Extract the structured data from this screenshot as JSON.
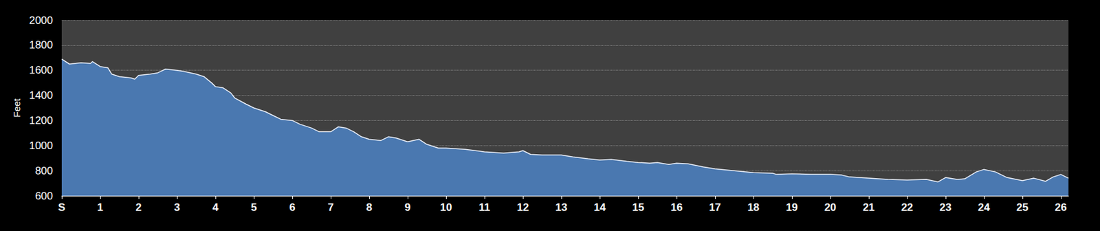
{
  "chart_data": {
    "type": "area",
    "y_label": "Feet",
    "color": "#4a78b0",
    "grid": true,
    "x": [
      0,
      0.2,
      0.5,
      0.75,
      0.8,
      1.0,
      1.2,
      1.3,
      1.5,
      1.8,
      1.9,
      2.0,
      2.3,
      2.5,
      2.7,
      3.0,
      3.2,
      3.5,
      3.7,
      3.9,
      4.0,
      4.2,
      4.4,
      4.5,
      4.8,
      5.0,
      5.3,
      5.5,
      5.7,
      6.0,
      6.2,
      6.5,
      6.7,
      7.0,
      7.2,
      7.4,
      7.6,
      7.8,
      8.0,
      8.3,
      8.5,
      8.7,
      9.0,
      9.3,
      9.5,
      9.8,
      10.0,
      10.5,
      11.0,
      11.5,
      11.9,
      12.0,
      12.2,
      12.5,
      13.0,
      13.3,
      13.7,
      14.0,
      14.3,
      14.7,
      15.0,
      15.3,
      15.5,
      15.8,
      16.0,
      16.3,
      16.7,
      17.0,
      17.5,
      18.0,
      18.5,
      18.6,
      19.0,
      19.5,
      20.0,
      20.3,
      20.5,
      21.0,
      21.5,
      22.0,
      22.5,
      22.8,
      23.0,
      23.3,
      23.5,
      23.8,
      24.0,
      24.3,
      24.6,
      25.0,
      25.3,
      25.6,
      25.8,
      26.0,
      26.2
    ],
    "values": [
      1690,
      1650,
      1660,
      1655,
      1670,
      1630,
      1620,
      1570,
      1550,
      1540,
      1530,
      1560,
      1570,
      1580,
      1610,
      1600,
      1590,
      1570,
      1550,
      1500,
      1470,
      1460,
      1420,
      1380,
      1330,
      1300,
      1270,
      1240,
      1210,
      1200,
      1170,
      1140,
      1110,
      1110,
      1150,
      1140,
      1110,
      1070,
      1050,
      1040,
      1070,
      1060,
      1030,
      1050,
      1010,
      980,
      980,
      970,
      950,
      940,
      950,
      960,
      930,
      925,
      925,
      910,
      895,
      885,
      890,
      875,
      865,
      860,
      865,
      850,
      860,
      855,
      830,
      815,
      800,
      785,
      780,
      770,
      775,
      770,
      770,
      765,
      750,
      740,
      730,
      725,
      730,
      710,
      745,
      730,
      735,
      790,
      810,
      790,
      745,
      720,
      740,
      715,
      750,
      770,
      740
    ],
    "xlim": [
      0,
      26.2
    ],
    "xticks": [
      {
        "value": 0,
        "label": "S"
      },
      1,
      2,
      3,
      4,
      5,
      6,
      7,
      8,
      9,
      10,
      11,
      12,
      13,
      14,
      15,
      16,
      17,
      18,
      19,
      20,
      21,
      22,
      23,
      24,
      25,
      26
    ],
    "ylim": [
      600,
      2000
    ],
    "yticks": [
      600,
      800,
      1000,
      1200,
      1400,
      1600,
      1800,
      2000
    ]
  }
}
